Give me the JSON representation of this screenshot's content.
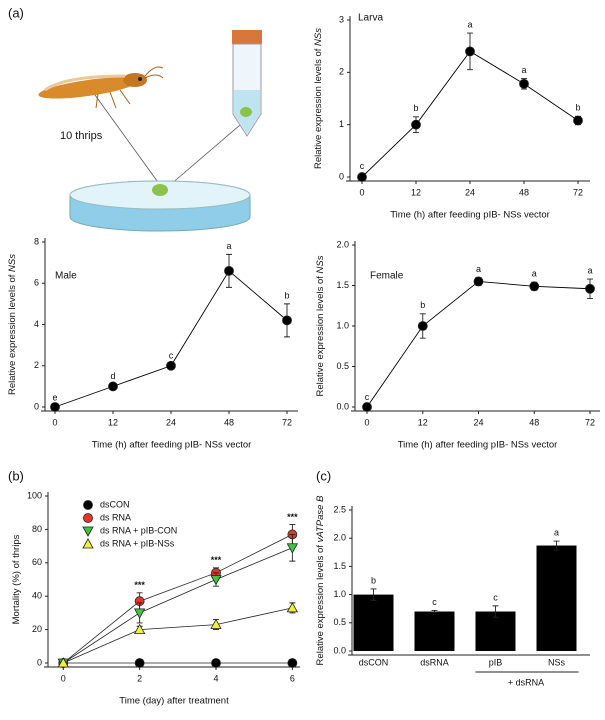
{
  "panels": [
    "(a)",
    "(b)",
    "(c)"
  ],
  "illustration": {
    "label": "10 thrips"
  },
  "chart_data": [
    {
      "type": "line",
      "title": "Larva",
      "xlabel": "Time (h) after feeding pIB- NSs vector",
      "ylabel": [
        "Relative expression levels of ",
        "NSs"
      ],
      "categories": [
        "0",
        "12",
        "24",
        "48",
        "72"
      ],
      "values": [
        0,
        1.0,
        2.4,
        1.78,
        1.08
      ],
      "errors": [
        0.05,
        0.15,
        0.35,
        0.1,
        0.08
      ],
      "annotations": [
        "c",
        "b",
        "a",
        "a",
        "b"
      ],
      "color": "#000000",
      "ylim": [
        0,
        3
      ],
      "yticks": [
        0,
        1,
        2,
        3
      ]
    },
    {
      "type": "line",
      "title": "Male",
      "xlabel": "Time (h) after feeding pIB- NSs vector",
      "ylabel": [
        "Relative expression levels of ",
        "NSs"
      ],
      "categories": [
        "0",
        "12",
        "24",
        "48",
        "72"
      ],
      "values": [
        0,
        1.0,
        2.0,
        6.6,
        4.2
      ],
      "errors": [
        0.05,
        0.08,
        0.08,
        0.8,
        0.8
      ],
      "annotations": [
        "e",
        "d",
        "c",
        "a",
        "b"
      ],
      "color": "#000000",
      "ylim": [
        0,
        8
      ],
      "yticks": [
        0,
        2,
        4,
        6,
        8
      ]
    },
    {
      "type": "line",
      "title": "Female",
      "xlabel": "Time (h) after feeding pIB- NSs vector",
      "ylabel": [
        "Relative expression levels of ",
        "NSs"
      ],
      "categories": [
        "0",
        "12",
        "24",
        "48",
        "72"
      ],
      "values": [
        0,
        1.0,
        1.55,
        1.49,
        1.46
      ],
      "errors": [
        0.02,
        0.15,
        0.05,
        0.05,
        0.12
      ],
      "annotations": [
        "c",
        "b",
        "a",
        "a",
        "a"
      ],
      "color": "#000000",
      "ylim": [
        0,
        2
      ],
      "yticks": [
        {
          "value": 0,
          "label": "0.0"
        },
        {
          "value": 0.5,
          "label": "0.5"
        },
        {
          "value": 1,
          "label": "1.0"
        },
        {
          "value": 1.5,
          "label": "1.5"
        },
        {
          "value": 2,
          "label": "2.0"
        }
      ]
    },
    {
      "type": "scatter-line",
      "xlabel": "Time (day) after treatment",
      "ylabel": [
        "Mortality (%) of thrips"
      ],
      "x": [
        0,
        2,
        4,
        6
      ],
      "xlim": [
        -0.4,
        6.2
      ],
      "xticks": [
        0,
        2,
        4,
        6
      ],
      "ylim": [
        0,
        100
      ],
      "yticks": [
        0,
        20,
        40,
        60,
        80,
        100
      ],
      "annotations": [
        null,
        "***",
        "***",
        "***"
      ],
      "legend": "upper-left",
      "series": [
        {
          "name": "dsCON",
          "color": "#000000",
          "marker": "circle",
          "values": [
            0,
            0,
            0,
            0
          ],
          "errors": [
            0,
            0,
            0,
            0
          ]
        },
        {
          "name": "ds RNA",
          "color": "#e8332a",
          "marker": "circle",
          "values": [
            0,
            37,
            54,
            77
          ],
          "errors": [
            0,
            5,
            3,
            6
          ]
        },
        {
          "name": "ds RNA + pIB-CON",
          "color": "#3ec43e",
          "marker": "triangle-down",
          "values": [
            0,
            30,
            50,
            69
          ],
          "errors": [
            0,
            6,
            4,
            8
          ]
        },
        {
          "name": "ds RNA + pIB-NSs",
          "color": "#f4ef3a",
          "marker": "triangle-up",
          "values": [
            0,
            20,
            23,
            33
          ],
          "errors": [
            0,
            2,
            3,
            3
          ]
        }
      ]
    },
    {
      "type": "bar",
      "ylabel": [
        "Relative expression levels of ",
        "vATPase B"
      ],
      "group_label": "+ dsRNA",
      "categories": [
        "dsCON",
        "dsRNA",
        "pIB",
        "NSs"
      ],
      "values": [
        1.0,
        0.7,
        0.7,
        1.87
      ],
      "errors": [
        0.1,
        0.02,
        0.1,
        0.08
      ],
      "annotations": [
        "b",
        "c",
        "c",
        "a"
      ],
      "color": "#000000",
      "ylim": [
        0,
        2.5
      ],
      "yticks": [
        {
          "value": 0,
          "label": "0.0"
        },
        {
          "value": 0.5,
          "label": "0.5"
        },
        {
          "value": 1,
          "label": "1.0"
        },
        {
          "value": 1.5,
          "label": "1.5"
        },
        {
          "value": 2,
          "label": "2.0"
        },
        {
          "value": 2.5,
          "label": "2.5"
        }
      ]
    }
  ]
}
